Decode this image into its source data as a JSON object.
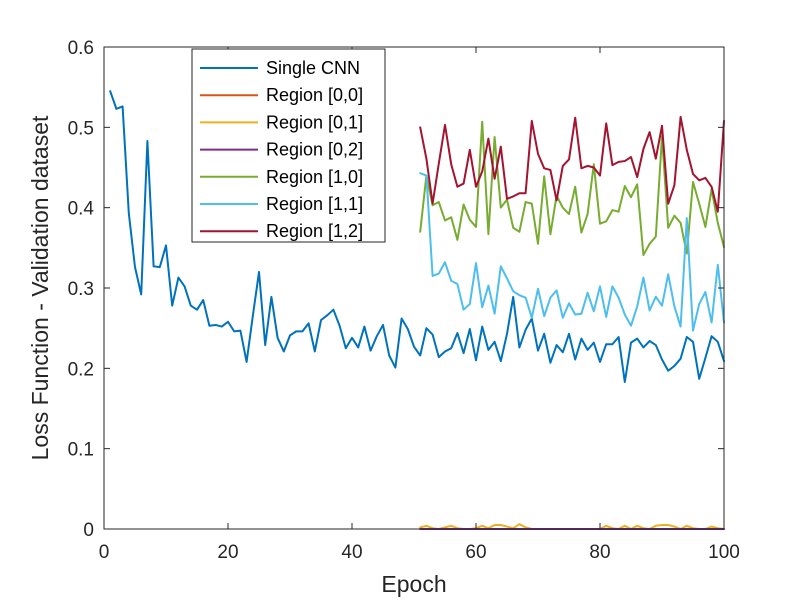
{
  "chart_data": {
    "type": "line",
    "xlabel": "Epoch",
    "ylabel": "Loss Function - Validation dataset",
    "xlim": [
      0,
      100
    ],
    "ylim": [
      0,
      0.6
    ],
    "xticks": [
      0,
      20,
      40,
      60,
      80,
      100
    ],
    "yticks": [
      0,
      0.1,
      0.2,
      0.3,
      0.4,
      0.5,
      0.6
    ],
    "xtick_labels": [
      "0",
      "20",
      "40",
      "60",
      "80",
      "100"
    ],
    "ytick_labels": [
      "0",
      "0.1",
      "0.2",
      "0.3",
      "0.4",
      "0.5",
      "0.6"
    ],
    "grid": false,
    "legend_position": "top-left",
    "series": [
      {
        "name": "Single CNN",
        "color": "#0072BD",
        "x": [
          1,
          2,
          3,
          4,
          5,
          6,
          7,
          8,
          9,
          10,
          11,
          12,
          13,
          14,
          15,
          16,
          17,
          18,
          19,
          20,
          21,
          22,
          23,
          24,
          25,
          26,
          27,
          28,
          29,
          30,
          31,
          32,
          33,
          34,
          35,
          36,
          37,
          38,
          39,
          40,
          41,
          42,
          43,
          44,
          45,
          46,
          47,
          48,
          49,
          50,
          51,
          52,
          53,
          54,
          55,
          56,
          57,
          58,
          59,
          60,
          61,
          62,
          63,
          64,
          65,
          66,
          67,
          68,
          69,
          70,
          71,
          72,
          73,
          74,
          75,
          76,
          77,
          78,
          79,
          80,
          81,
          82,
          83,
          84,
          85,
          86,
          87,
          88,
          89,
          90,
          91,
          92,
          93,
          94,
          95,
          96,
          97,
          98,
          99,
          100
        ],
        "y": [
          0.545,
          0.523,
          0.526,
          0.393,
          0.326,
          0.292,
          0.483,
          0.327,
          0.326,
          0.353,
          0.278,
          0.313,
          0.302,
          0.278,
          0.273,
          0.285,
          0.253,
          0.254,
          0.252,
          0.258,
          0.246,
          0.247,
          0.208,
          0.265,
          0.32,
          0.229,
          0.289,
          0.238,
          0.221,
          0.241,
          0.246,
          0.246,
          0.256,
          0.221,
          0.26,
          0.266,
          0.273,
          0.253,
          0.225,
          0.238,
          0.226,
          0.252,
          0.222,
          0.24,
          0.254,
          0.216,
          0.201,
          0.262,
          0.249,
          0.227,
          0.216,
          0.25,
          0.242,
          0.214,
          0.221,
          0.225,
          0.244,
          0.219,
          0.249,
          0.21,
          0.252,
          0.223,
          0.233,
          0.209,
          0.243,
          0.289,
          0.226,
          0.248,
          0.262,
          0.222,
          0.243,
          0.207,
          0.229,
          0.22,
          0.243,
          0.211,
          0.237,
          0.223,
          0.232,
          0.208,
          0.23,
          0.23,
          0.239,
          0.183,
          0.232,
          0.237,
          0.226,
          0.234,
          0.229,
          0.211,
          0.197,
          0.203,
          0.212,
          0.239,
          0.233,
          0.187,
          0.213,
          0.24,
          0.233,
          0.209
        ]
      },
      {
        "name": "Region [0,0]",
        "color": "#D95319",
        "x": [
          51,
          100
        ],
        "y": [
          0.0,
          0.0
        ]
      },
      {
        "name": "Region [0,1]",
        "color": "#EDB120",
        "x": [
          51,
          52,
          53,
          54,
          55,
          56,
          57,
          58,
          59,
          60,
          61,
          62,
          63,
          64,
          65,
          66,
          67,
          68,
          69,
          70,
          71,
          72,
          73,
          74,
          75,
          76,
          77,
          78,
          79,
          80,
          81,
          82,
          83,
          84,
          85,
          86,
          87,
          88,
          89,
          90,
          91,
          92,
          93,
          94,
          95,
          96,
          97,
          98,
          99,
          100
        ],
        "y": [
          0.002,
          0.004,
          0.001,
          0.0,
          0.002,
          0.004,
          0.001,
          0.0,
          0.0,
          0.001,
          0.004,
          0.001,
          0.005,
          0.005,
          0.003,
          0.001,
          0.006,
          0.002,
          0.0,
          0.0,
          0.0,
          0.0,
          0.0,
          0.0,
          0.0,
          0.0,
          0.0,
          0.0,
          0.0,
          0.0,
          0.004,
          0.001,
          0.0,
          0.004,
          0.0,
          0.004,
          0.001,
          0.0,
          0.004,
          0.005,
          0.005,
          0.003,
          0.0,
          0.004,
          0.001,
          0.0,
          0.0,
          0.003,
          0.001,
          0.0
        ]
      },
      {
        "name": "Region [0,2]",
        "color": "#7E2F8E",
        "x": [
          51,
          100
        ],
        "y": [
          0.0,
          0.0
        ]
      },
      {
        "name": "Region [1,0]",
        "color": "#77AC30",
        "x": [
          51,
          52,
          53,
          54,
          55,
          56,
          57,
          58,
          59,
          60,
          61,
          62,
          63,
          64,
          65,
          66,
          67,
          68,
          69,
          70,
          71,
          72,
          73,
          74,
          75,
          76,
          77,
          78,
          79,
          80,
          81,
          82,
          83,
          84,
          85,
          86,
          87,
          88,
          89,
          90,
          91,
          92,
          93,
          94,
          95,
          96,
          97,
          98,
          99,
          100
        ],
        "y": [
          0.37,
          0.44,
          0.403,
          0.407,
          0.384,
          0.388,
          0.36,
          0.404,
          0.385,
          0.376,
          0.507,
          0.367,
          0.488,
          0.4,
          0.41,
          0.375,
          0.37,
          0.407,
          0.405,
          0.355,
          0.439,
          0.367,
          0.415,
          0.4,
          0.392,
          0.426,
          0.369,
          0.392,
          0.454,
          0.38,
          0.383,
          0.397,
          0.395,
          0.427,
          0.413,
          0.429,
          0.341,
          0.355,
          0.364,
          0.489,
          0.375,
          0.39,
          0.381,
          0.343,
          0.432,
          0.405,
          0.376,
          0.423,
          0.381,
          0.351
        ]
      },
      {
        "name": "Region [1,1]",
        "color": "#4DBEEE",
        "x": [
          51,
          52,
          53,
          54,
          55,
          56,
          57,
          58,
          59,
          60,
          61,
          62,
          63,
          64,
          65,
          66,
          67,
          68,
          69,
          70,
          71,
          72,
          73,
          74,
          75,
          76,
          77,
          78,
          79,
          80,
          81,
          82,
          83,
          84,
          85,
          86,
          87,
          88,
          89,
          90,
          91,
          92,
          93,
          94,
          95,
          96,
          97,
          98,
          99,
          100
        ],
        "y": [
          0.443,
          0.44,
          0.315,
          0.318,
          0.332,
          0.309,
          0.305,
          0.273,
          0.28,
          0.331,
          0.276,
          0.303,
          0.268,
          0.327,
          0.312,
          0.296,
          0.291,
          0.288,
          0.263,
          0.299,
          0.265,
          0.288,
          0.297,
          0.263,
          0.281,
          0.267,
          0.268,
          0.294,
          0.271,
          0.302,
          0.264,
          0.302,
          0.288,
          0.267,
          0.253,
          0.277,
          0.313,
          0.272,
          0.289,
          0.278,
          0.317,
          0.277,
          0.252,
          0.387,
          0.247,
          0.28,
          0.295,
          0.257,
          0.329,
          0.257
        ]
      },
      {
        "name": "Region [1,2]",
        "color": "#A2142F",
        "x": [
          51,
          52,
          53,
          54,
          55,
          56,
          57,
          58,
          59,
          60,
          61,
          62,
          63,
          64,
          65,
          66,
          67,
          68,
          69,
          70,
          71,
          72,
          73,
          74,
          75,
          76,
          77,
          78,
          79,
          80,
          81,
          82,
          83,
          84,
          85,
          86,
          87,
          88,
          89,
          90,
          91,
          92,
          93,
          94,
          95,
          96,
          97,
          98,
          99,
          100
        ],
        "y": [
          0.5,
          0.461,
          0.405,
          0.455,
          0.503,
          0.454,
          0.426,
          0.43,
          0.472,
          0.426,
          0.445,
          0.486,
          0.436,
          0.476,
          0.411,
          0.414,
          0.418,
          0.418,
          0.508,
          0.467,
          0.449,
          0.447,
          0.409,
          0.452,
          0.46,
          0.512,
          0.449,
          0.452,
          0.45,
          0.44,
          0.505,
          0.453,
          0.457,
          0.458,
          0.463,
          0.438,
          0.473,
          0.494,
          0.461,
          0.502,
          0.405,
          0.428,
          0.513,
          0.472,
          0.442,
          0.434,
          0.437,
          0.426,
          0.395,
          0.508
        ]
      }
    ]
  }
}
